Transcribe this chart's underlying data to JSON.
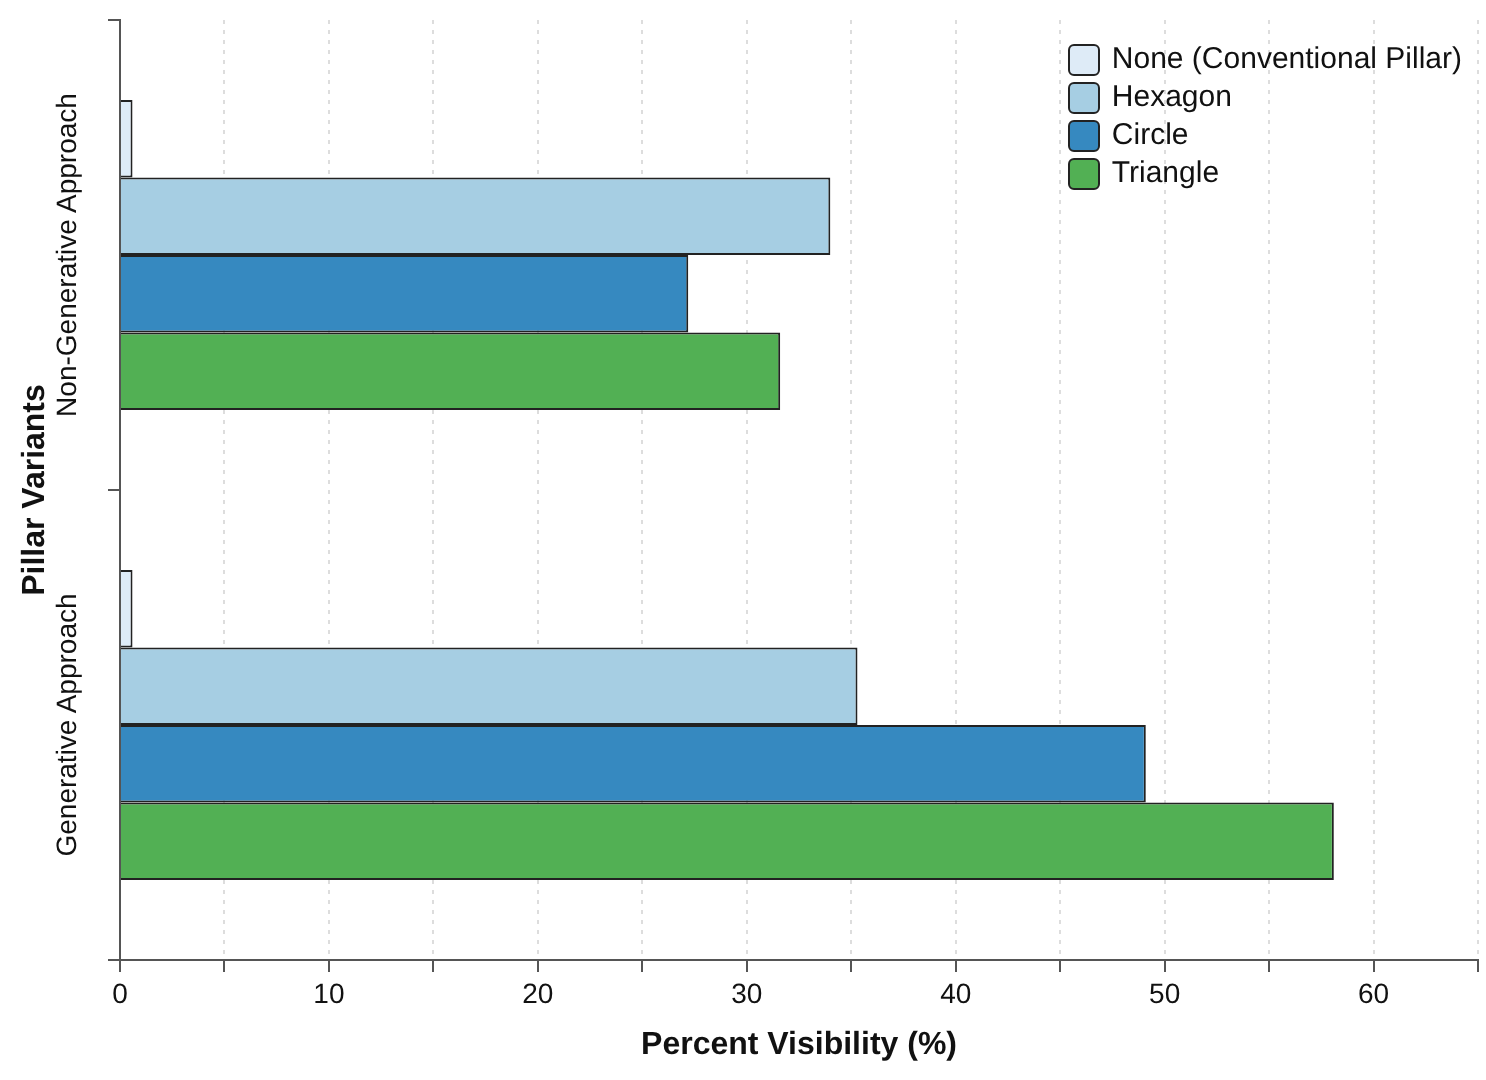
{
  "chart_data": {
    "type": "bar",
    "orientation": "horizontal",
    "xlabel": "Percent Visibility (%)",
    "ylabel": "Pillar Variants",
    "categories": [
      "Non-Generative Approach",
      "Generative Approach"
    ],
    "series": [
      {
        "name": "None (Conventional Pillar)",
        "color": "#deebf7",
        "values": [
          0.6,
          0.6
        ]
      },
      {
        "name": "Hexagon",
        "color": "#a6cee3",
        "values": [
          34.0,
          35.3
        ]
      },
      {
        "name": "Circle",
        "color": "#3689c0",
        "values": [
          27.2,
          49.1
        ]
      },
      {
        "name": "Triangle",
        "color": "#52b054",
        "values": [
          31.6,
          58.1
        ]
      }
    ],
    "xlim": [
      0,
      65
    ],
    "xticks": [
      0,
      {
        "value": 5,
        "label": null
      },
      10,
      {
        "value": 15,
        "label": null
      },
      20,
      {
        "value": 25,
        "label": null
      },
      30,
      {
        "value": 35,
        "label": null
      },
      40,
      {
        "value": 45,
        "label": null
      },
      50,
      {
        "value": 55,
        "label": null
      },
      60,
      {
        "value": 65,
        "label": null
      }
    ],
    "grid": "x",
    "legend": "top right"
  }
}
